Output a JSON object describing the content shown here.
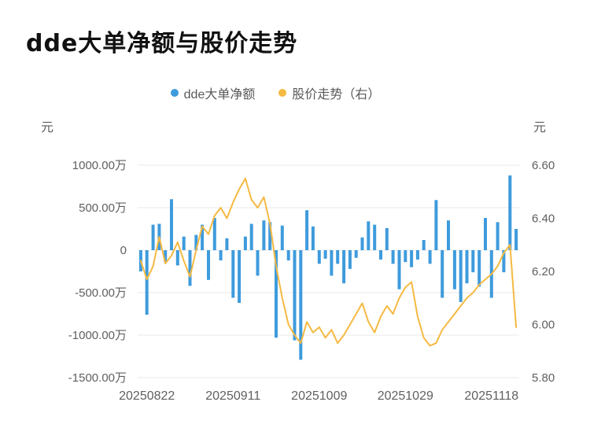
{
  "header": {
    "title": "dde大单净额与股价走势"
  },
  "legend": [
    {
      "label": "dde大单净额",
      "color": "#3e9bdc"
    },
    {
      "label": "股价走势（右）",
      "color": "#f5b942"
    }
  ],
  "axes": {
    "left_unit": "元",
    "right_unit": "元"
  },
  "chart_data": {
    "type": "bar",
    "subtype": "bar+line dual-axis",
    "title": "dde大单净额与股价走势",
    "grid": true,
    "colors": {
      "grid": "#e9e9e9",
      "bar": "#3e9bdc",
      "line": "#f5b942"
    },
    "x_tick_labels": [
      "20250822",
      "20250911",
      "20251009",
      "20251029",
      "20251118"
    ],
    "x_tick_indices": [
      1,
      15,
      29,
      43,
      57
    ],
    "left_axis": {
      "unit": "元",
      "ticks": [
        "1000.00万",
        "500.00万",
        "0",
        "-500.00万",
        "-1000.00万",
        "-1500.00万"
      ],
      "max": 1000,
      "min": -1500,
      "value_unit": "万"
    },
    "right_axis": {
      "unit": "元",
      "ticks": [
        "6.60",
        "6.40",
        "6.20",
        "6.00",
        "5.80"
      ],
      "max": 6.6,
      "min": 5.8
    },
    "series": [
      {
        "name": "dde大单净额",
        "type": "bar",
        "axis": "left",
        "color": "#3e9bdc",
        "values": [
          -250,
          -760,
          300,
          310,
          -140,
          600,
          -180,
          160,
          -420,
          180,
          300,
          -350,
          380,
          -120,
          140,
          -560,
          -620,
          160,
          310,
          -300,
          350,
          330,
          -1030,
          290,
          -120,
          -1060,
          -1290,
          470,
          280,
          -160,
          -100,
          -300,
          -160,
          -390,
          -220,
          -90,
          150,
          340,
          300,
          -110,
          260,
          -160,
          -460,
          -140,
          -200,
          -110,
          120,
          -160,
          590,
          -560,
          350,
          -460,
          -610,
          -390,
          -260,
          -430,
          380,
          -560,
          330,
          -260,
          880,
          250
        ]
      },
      {
        "name": "股价走势（右）",
        "type": "line",
        "axis": "right",
        "color": "#f5b942",
        "values": [
          6.24,
          6.17,
          6.22,
          6.33,
          6.23,
          6.26,
          6.31,
          6.24,
          6.18,
          6.28,
          6.37,
          6.34,
          6.41,
          6.44,
          6.4,
          6.46,
          6.51,
          6.55,
          6.47,
          6.44,
          6.48,
          6.38,
          6.22,
          6.1,
          6.0,
          5.96,
          5.93,
          6.01,
          5.97,
          5.99,
          5.95,
          5.98,
          5.93,
          5.96,
          6.0,
          6.04,
          6.08,
          6.01,
          5.97,
          6.03,
          6.07,
          6.04,
          6.1,
          6.14,
          6.16,
          6.03,
          5.95,
          5.92,
          5.93,
          5.98,
          6.01,
          6.04,
          6.07,
          6.1,
          6.12,
          6.15,
          6.17,
          6.19,
          6.22,
          6.27,
          6.3,
          5.99
        ]
      }
    ]
  }
}
